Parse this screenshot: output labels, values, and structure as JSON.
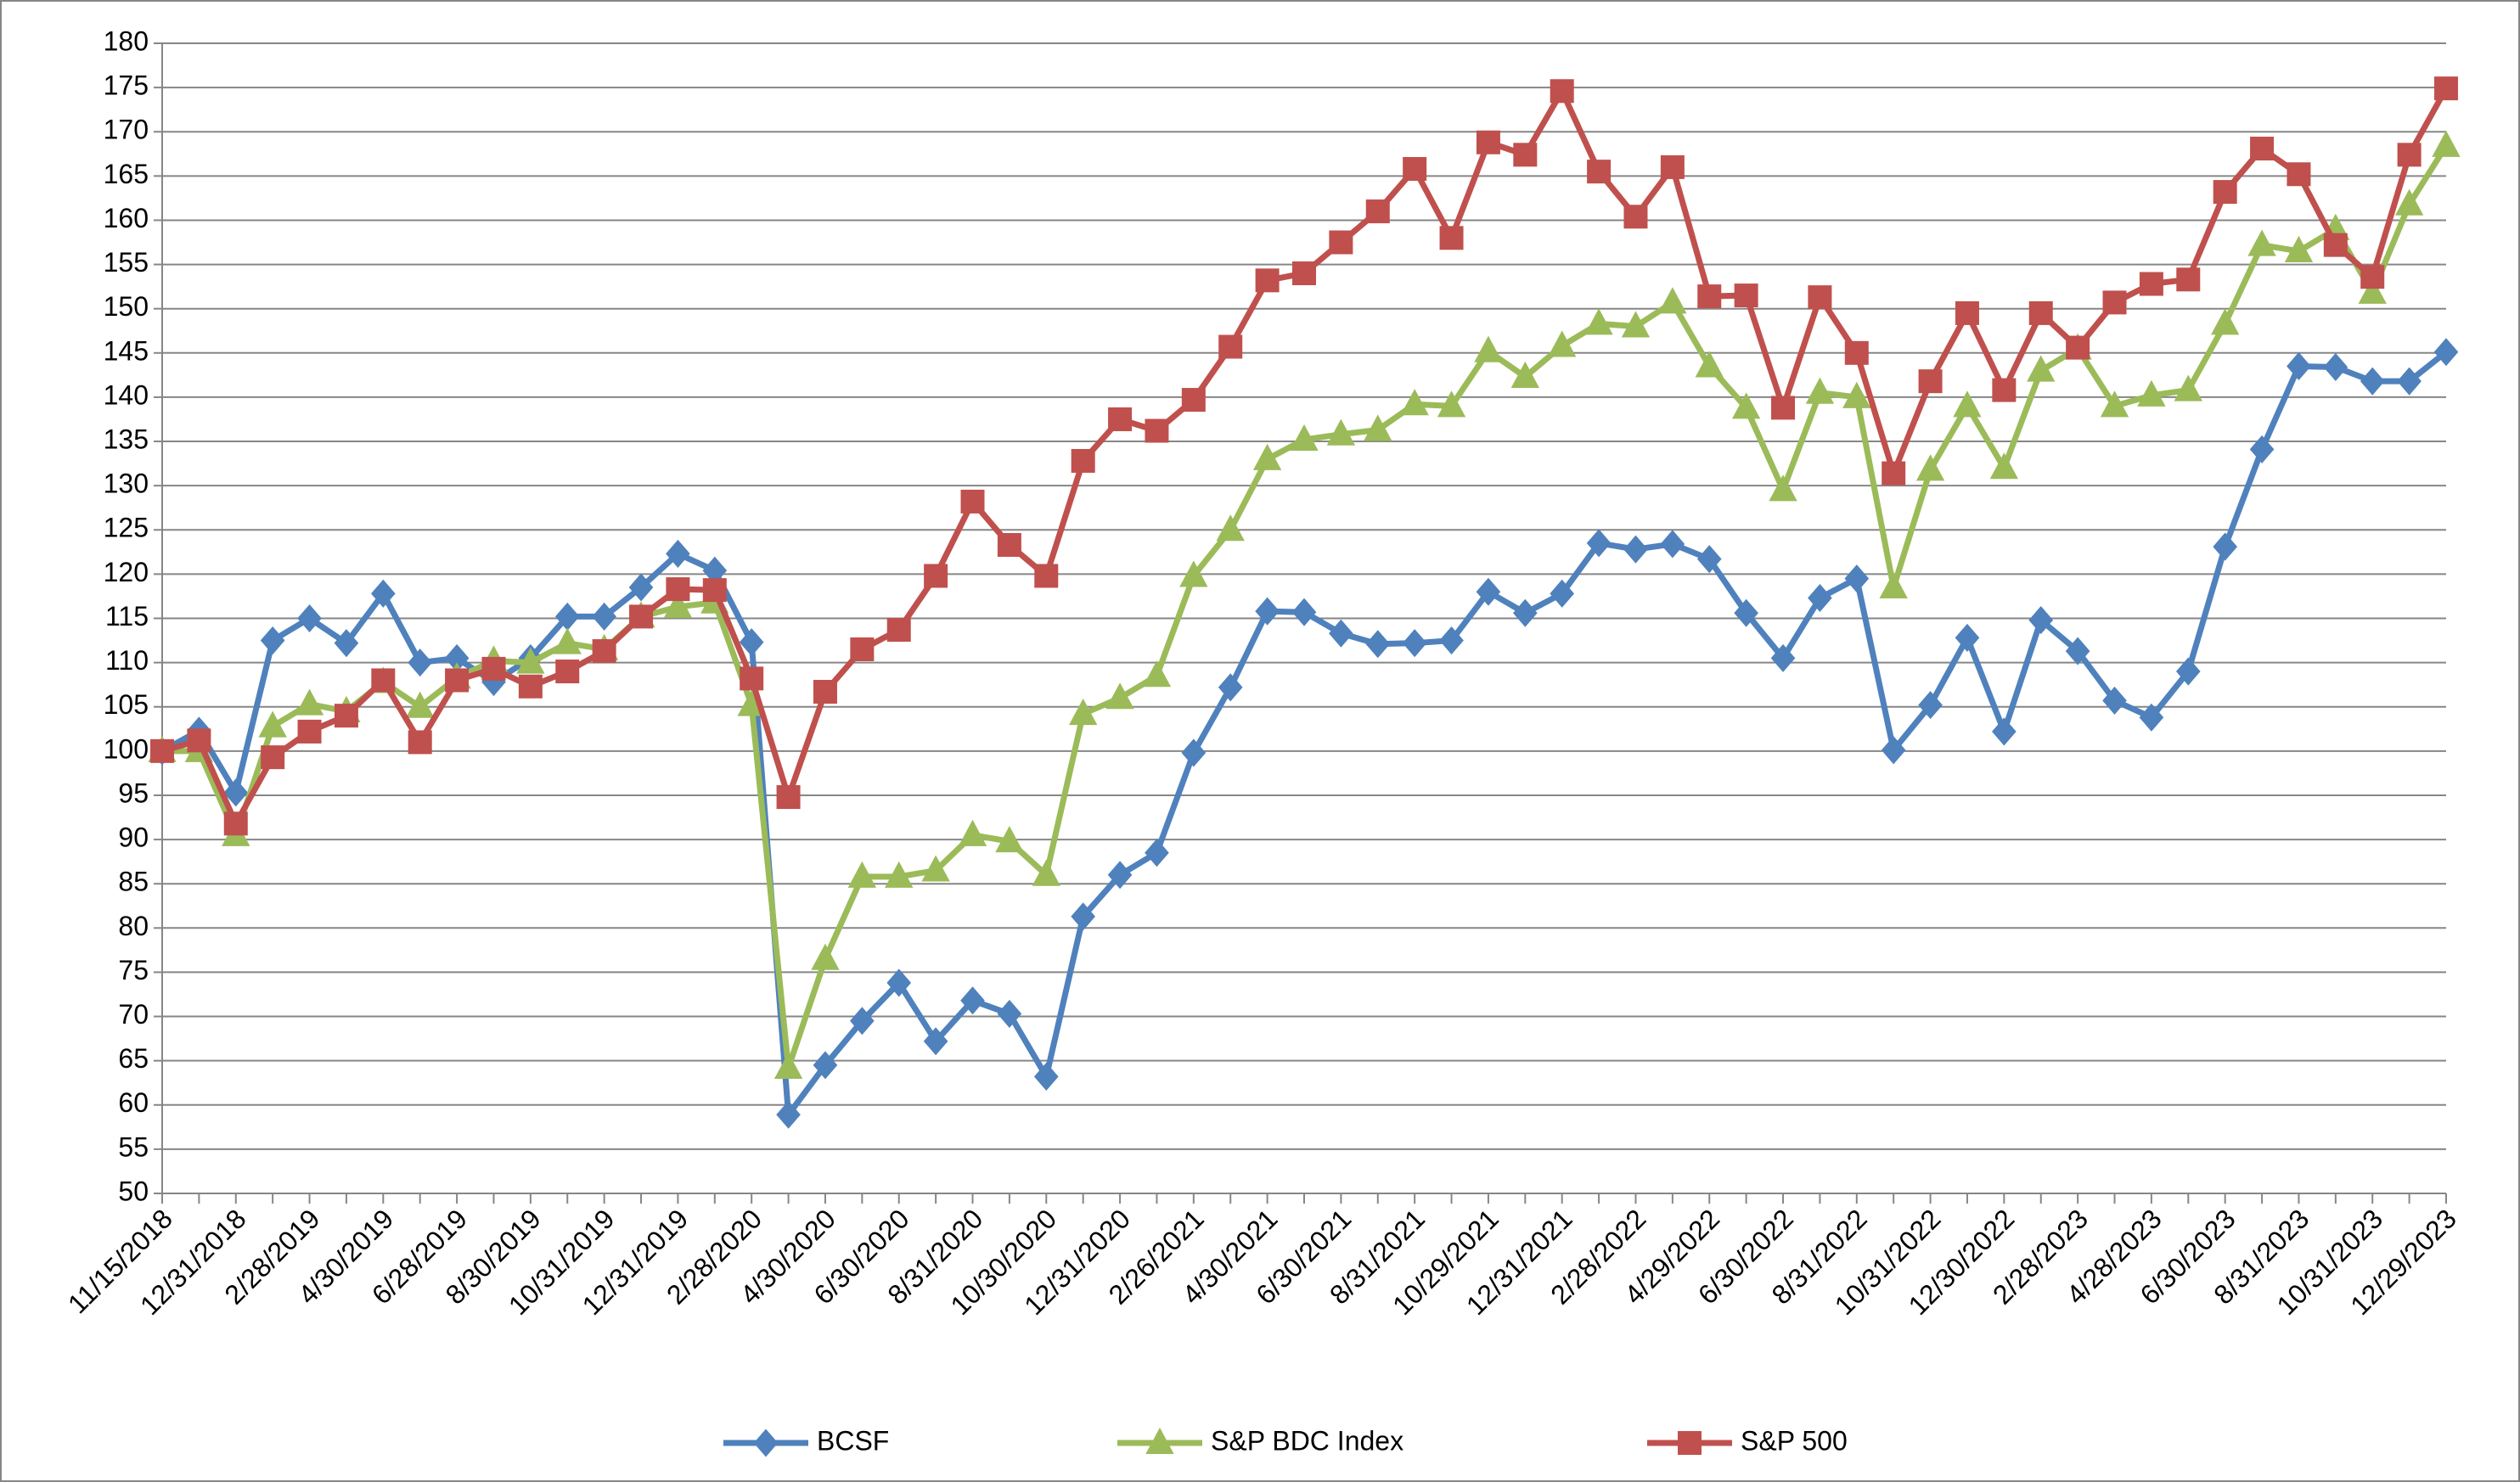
{
  "chart_data": {
    "type": "line",
    "categories": [
      "11/15/2018",
      null,
      "12/31/2018",
      null,
      "2/28/2019",
      null,
      "4/30/2019",
      null,
      "6/28/2019",
      null,
      "8/30/2019",
      null,
      "10/31/2019",
      null,
      "12/31/2019",
      null,
      "2/28/2020",
      null,
      "4/30/2020",
      null,
      "6/30/2020",
      null,
      "8/31/2020",
      null,
      "10/30/2020",
      null,
      "12/31/2020",
      null,
      "2/26/2021",
      null,
      "4/30/2021",
      null,
      "6/30/2021",
      null,
      "8/31/2021",
      null,
      "10/29/2021",
      null,
      "12/31/2021",
      null,
      "2/28/2022",
      null,
      "4/29/2022",
      null,
      "6/30/2022",
      null,
      "8/31/2022",
      null,
      "10/31/2022",
      null,
      "12/30/2022",
      null,
      "2/28/2023",
      null,
      "4/28/2023",
      null,
      "6/30/2023",
      null,
      "8/31/2023",
      null,
      "10/31/2023",
      null,
      "12/29/2023"
    ],
    "series": [
      {
        "name": "BCSF",
        "color": "#4f81bd",
        "marker": "diamond",
        "values": [
          100,
          102.3,
          95.3,
          112.5,
          115,
          112.2,
          117.8,
          110,
          110.5,
          107.8,
          110.5,
          115.2,
          115.2,
          118.5,
          122.3,
          120.4,
          112.3,
          58.9,
          64.5,
          69.5,
          73.8,
          67.2,
          71.8,
          70.3,
          63.2,
          81.3,
          86,
          88.5,
          99.8,
          107.2,
          115.8,
          115.7,
          113.3,
          112.1,
          112.2,
          112.5,
          118,
          115.6,
          117.8,
          123.5,
          122.8,
          123.4,
          121.7,
          115.6,
          110.5,
          117.3,
          119.5,
          100.1,
          105.2,
          112.8,
          102.2,
          114.8,
          111.3,
          105.7,
          103.8,
          109,
          123.1,
          134.1,
          143.5,
          143.4,
          141.8,
          141.8,
          145.1
        ]
      },
      {
        "name": "S&P BDC Index",
        "color": "#9bbb59",
        "marker": "triangle",
        "values": [
          100,
          100,
          90.5,
          102.8,
          105.3,
          104.5,
          107.8,
          105,
          108.3,
          110.2,
          110,
          112.2,
          111.5,
          115.2,
          116.3,
          116.8,
          105.2,
          64.2,
          76.5,
          85.8,
          85.8,
          86.5,
          90.5,
          89.8,
          86,
          104.2,
          106,
          108.5,
          119.8,
          125,
          133,
          135.2,
          135.8,
          136.3,
          139.2,
          139,
          145.2,
          142.3,
          145.8,
          148.3,
          148,
          150.7,
          143.5,
          138.8,
          129.5,
          140.5,
          140,
          118.5,
          131.8,
          139,
          132,
          143,
          145.5,
          139,
          140.2,
          140.8,
          148.3,
          157.2,
          156.5,
          159,
          151.8,
          161.8,
          168.4
        ]
      },
      {
        "name": "S&P 500",
        "color": "#c0504d",
        "marker": "square",
        "values": [
          100,
          101.2,
          91.8,
          99.3,
          102.2,
          104,
          108,
          101,
          108,
          109.3,
          107.3,
          109,
          111.3,
          115.2,
          118.3,
          118.2,
          108.2,
          94.8,
          106.7,
          111.5,
          113.7,
          119.8,
          128.2,
          123.3,
          119.8,
          132.8,
          137.5,
          136.2,
          139.7,
          145.7,
          153.2,
          154,
          157.5,
          161,
          165.8,
          158,
          168.8,
          167.4,
          174.6,
          165.5,
          160.4,
          166,
          151.4,
          151.5,
          138.8,
          151.3,
          145,
          131.4,
          141.8,
          149.5,
          140.8,
          149.5,
          145.6,
          150.7,
          152.8,
          153.3,
          163.2,
          168.1,
          165.2,
          157.2,
          153.6,
          167.4,
          174.9
        ]
      }
    ],
    "ylim": [
      50,
      180
    ],
    "yticks": [
      50,
      55,
      60,
      65,
      70,
      75,
      80,
      85,
      90,
      95,
      100,
      105,
      110,
      115,
      120,
      125,
      130,
      135,
      140,
      145,
      150,
      155,
      160,
      165,
      170,
      175,
      180
    ],
    "grid": true,
    "legend": "bottom"
  }
}
